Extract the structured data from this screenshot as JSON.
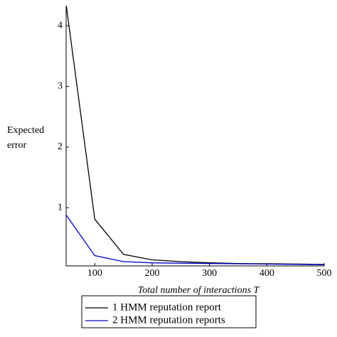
{
  "chart_data": {
    "type": "line",
    "x_label": "Total number of interactions  T",
    "y_label": "Expected error",
    "x": [
      50,
      100,
      150,
      200,
      250,
      300,
      350,
      400,
      450,
      500
    ],
    "series": [
      {
        "name": "1 HMM reputation report",
        "color": "#000000",
        "values": [
          4.35,
          0.81,
          0.23,
          0.14,
          0.11,
          0.09,
          0.08,
          0.075,
          0.07,
          0.065
        ]
      },
      {
        "name": "2 HMM reputation reports",
        "color": "#0000cc",
        "values": [
          0.88,
          0.21,
          0.11,
          0.09,
          0.085,
          0.08,
          0.075,
          0.07,
          0.065,
          0.06
        ]
      }
    ],
    "xlim": [
      50,
      500
    ],
    "xticks": [
      100,
      200,
      300,
      400,
      500
    ],
    "ylim": [
      0.04,
      4.33
    ],
    "yticks": [
      1,
      2,
      3,
      4
    ]
  }
}
